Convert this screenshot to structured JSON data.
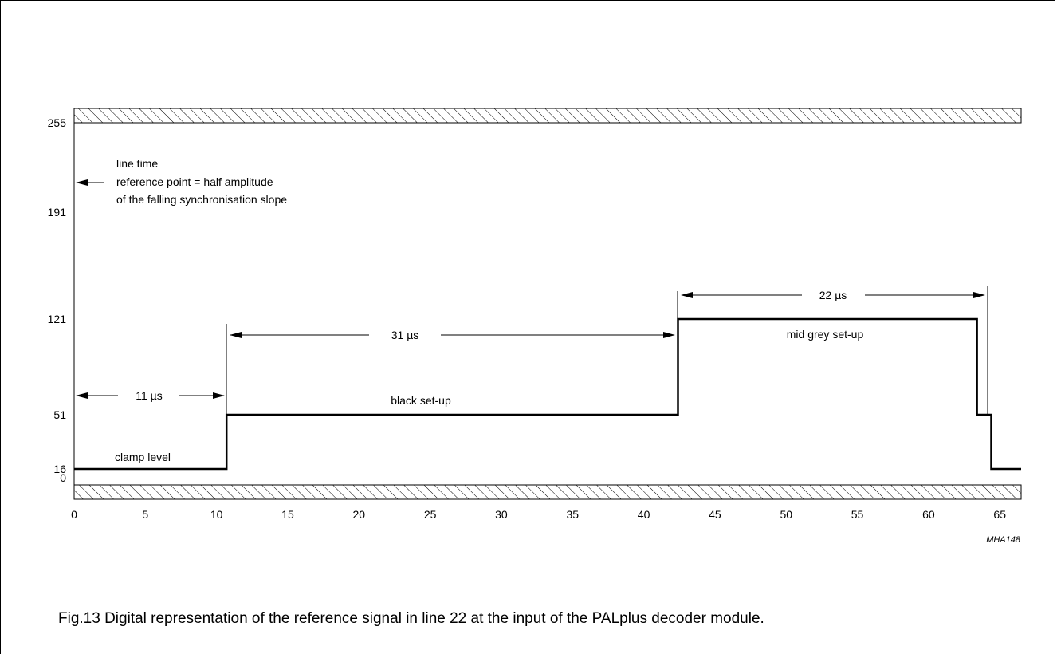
{
  "chart_data": {
    "type": "line",
    "x_ticks": [
      0,
      5,
      10,
      15,
      20,
      25,
      30,
      35,
      40,
      45,
      50,
      55,
      60,
      65
    ],
    "y_ticks": [
      0,
      16,
      51,
      121,
      191,
      255
    ],
    "xlim": [
      0,
      66.5
    ],
    "ylim": [
      0,
      255
    ],
    "grid": false,
    "series": [
      {
        "x": [
          0,
          10.7,
          10.7,
          42.4,
          42.4,
          63.4,
          63.4,
          64.4,
          64.4,
          66.5
        ],
        "y": [
          16,
          16,
          51,
          51,
          121,
          121,
          51,
          51,
          16,
          16
        ]
      }
    ],
    "annotations": {
      "line_time": [
        "line time",
        "reference point = half amplitude",
        "of the falling synchronisation slope"
      ],
      "clamp_level": "clamp level",
      "black_setup": "black set-up",
      "mid_grey_setup": "mid grey set-up",
      "dim_11": "11 µs",
      "dim_31": "31 µs",
      "dim_22": "22 µs"
    },
    "code": "MHA148"
  },
  "caption": "Fig.13  Digital representation of the reference signal in line 22 at the input of the PALplus decoder module."
}
